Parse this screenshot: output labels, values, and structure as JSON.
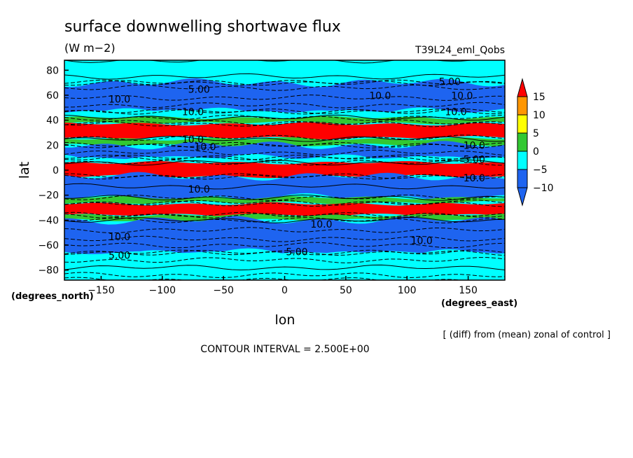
{
  "chart_data": {
    "type": "heatmap",
    "title": "surface downwelling shortwave flux",
    "units": "(W m−2)",
    "run_label": "T39L24_eml_Qobs",
    "xlabel": "lon",
    "ylabel": "lat",
    "x_unit_label": "(degrees_east)",
    "y_unit_label": "(degrees_north)",
    "xlim": [
      -180,
      180
    ],
    "ylim": [
      -88,
      88
    ],
    "xticks": [
      -150,
      -100,
      -50,
      0,
      50,
      100,
      150
    ],
    "xtick_labels": [
      "−150",
      "−100",
      "−50",
      "0",
      "50",
      "100",
      "150"
    ],
    "yticks": [
      80,
      60,
      40,
      20,
      0,
      -20,
      -40,
      -60,
      -80
    ],
    "ytick_labels": [
      "80",
      "60",
      "40",
      "20",
      "0",
      "−20",
      "−40",
      "−60",
      "−80"
    ],
    "colorbar": {
      "levels": [
        -10,
        -5,
        0,
        5,
        10,
        15
      ],
      "labels": [
        "15",
        "10",
        "5",
        "0",
        "−5",
        "−10"
      ],
      "colors": [
        "#1e64f0",
        "#00ffff",
        "#32c832",
        "#ffff00",
        "#ff9600",
        "#ff0000"
      ]
    },
    "zonal_bands": [
      {
        "lat_from": 70,
        "lat_to": 88,
        "level": "-5..0"
      },
      {
        "lat_from": 47,
        "lat_to": 70,
        "level": "-10..-5"
      },
      {
        "lat_from": 42,
        "lat_to": 47,
        "level": "-5..0"
      },
      {
        "lat_from": 38,
        "lat_to": 42,
        "level": "0..5"
      },
      {
        "lat_from": 26,
        "lat_to": 37,
        "level": ">15"
      },
      {
        "lat_from": 20,
        "lat_to": 25,
        "level": "0..5"
      },
      {
        "lat_from": 10,
        "lat_to": 20,
        "level": "-10..-5"
      },
      {
        "lat_from": 6,
        "lat_to": 10,
        "level": "-5..0"
      },
      {
        "lat_from": -5,
        "lat_to": 6,
        "level": ">15"
      },
      {
        "lat_from": -22,
        "lat_to": -5,
        "level": "-10..-5"
      },
      {
        "lat_from": -26,
        "lat_to": -22,
        "level": "0..5"
      },
      {
        "lat_from": -36,
        "lat_to": -27,
        "level": ">15"
      },
      {
        "lat_from": -40,
        "lat_to": -36,
        "level": "0..5"
      },
      {
        "lat_from": -66,
        "lat_to": -40,
        "level": "-10..-5"
      },
      {
        "lat_from": -88,
        "lat_to": -66,
        "level": "-5..0"
      }
    ],
    "contour_labels": [
      {
        "text": "5.00",
        "lon": -70,
        "lat": 62
      },
      {
        "text": "10.0",
        "lon": -135,
        "lat": 54
      },
      {
        "text": "10.0",
        "lon": 78,
        "lat": 57
      },
      {
        "text": "5.00",
        "lon": 135,
        "lat": 68
      },
      {
        "text": "10.0",
        "lon": 145,
        "lat": 57
      },
      {
        "text": "10.0",
        "lon": -75,
        "lat": 44
      },
      {
        "text": "10.0",
        "lon": -75,
        "lat": 22
      },
      {
        "text": "10.0",
        "lon": -65,
        "lat": 16
      },
      {
        "text": "10.0",
        "lon": 140,
        "lat": 44
      },
      {
        "text": "10.0",
        "lon": 155,
        "lat": 17
      },
      {
        "text": "5.00",
        "lon": 155,
        "lat": 6
      },
      {
        "text": "10.0",
        "lon": -70,
        "lat": -18
      },
      {
        "text": "10.0",
        "lon": 155,
        "lat": -9
      },
      {
        "text": "10.0",
        "lon": -135,
        "lat": -56
      },
      {
        "text": "10.0",
        "lon": 30,
        "lat": -46
      },
      {
        "text": "5.00",
        "lon": 10,
        "lat": -68
      },
      {
        "text": "10.0",
        "lon": 112,
        "lat": -59
      },
      {
        "text": "5.00",
        "lon": -135,
        "lat": -71
      }
    ],
    "note": "[ (diff) from (mean) zonal of control ]",
    "contour_interval_text": "CONTOUR INTERVAL = 2.500E+00",
    "grid": false
  }
}
